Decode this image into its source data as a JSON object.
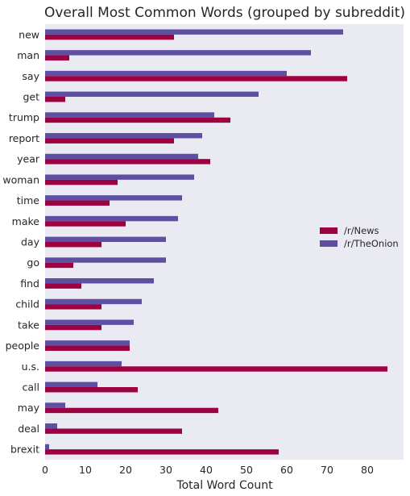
{
  "chart_data": {
    "type": "bar",
    "orientation": "horizontal",
    "title": "Overall Most Common Words (grouped by subreddit)",
    "xlabel": "Total Word Count",
    "ylabel": "",
    "xlim": [
      0,
      89
    ],
    "xticks": [
      "0",
      "10",
      "20",
      "30",
      "40",
      "50",
      "60",
      "70",
      "80"
    ],
    "grid": false,
    "background": "#eaeaf2",
    "legend_position": "center-right",
    "categories": [
      "new",
      "man",
      "say",
      "get",
      "trump",
      "report",
      "year",
      "woman",
      "time",
      "make",
      "day",
      "go",
      "find",
      "child",
      "take",
      "people",
      "u.s.",
      "call",
      "may",
      "deal",
      "brexit"
    ],
    "series": [
      {
        "name": "/r/News",
        "color": "#9e0142",
        "values": [
          32,
          6,
          75,
          5,
          46,
          32,
          41,
          18,
          16,
          20,
          14,
          7,
          9,
          14,
          14,
          21,
          85,
          23,
          43,
          34,
          58
        ]
      },
      {
        "name": "/r/TheOnion",
        "color": "#5e4fa2",
        "values": [
          74,
          66,
          60,
          53,
          42,
          39,
          38,
          37,
          34,
          33,
          30,
          30,
          27,
          24,
          22,
          21,
          19,
          13,
          5,
          3,
          1
        ]
      }
    ]
  }
}
